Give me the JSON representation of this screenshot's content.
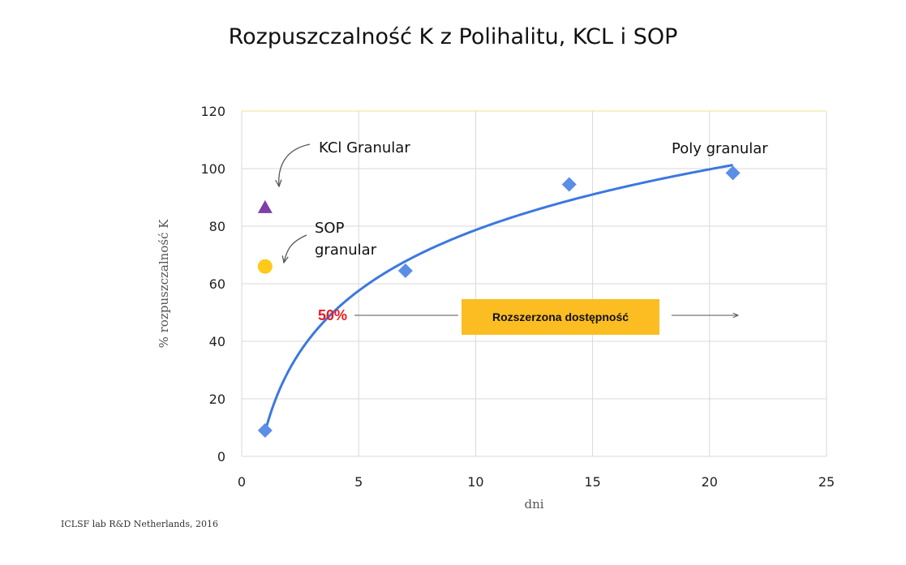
{
  "chart_data": {
    "type": "scatter",
    "title": "Rozpuszczalność K z Polihalitu, KCL i SOP",
    "xlabel": "dni",
    "ylabel": "% rozpuszczalność K",
    "xlim": [
      0,
      25
    ],
    "ylim": [
      0,
      120
    ],
    "x_ticks": [
      0,
      5,
      10,
      15,
      20,
      25
    ],
    "y_ticks": [
      0,
      20,
      40,
      60,
      80,
      100,
      120
    ],
    "grid": true,
    "series": [
      {
        "name": "Poly granular",
        "marker": "diamond",
        "color": "#5b8ee6",
        "x": [
          1,
          7,
          14,
          21
        ],
        "y": [
          9,
          64.5,
          94.5,
          98.5
        ]
      },
      {
        "name": "KCl Granular",
        "marker": "triangle",
        "color": "#7f3fa6",
        "x": [
          1
        ],
        "y": [
          86.5
        ]
      },
      {
        "name": "SOP granular",
        "marker": "circle",
        "color": "#ffc91a",
        "x": [
          1
        ],
        "y": [
          66
        ]
      }
    ],
    "trendline": {
      "type": "logarithmic",
      "color": "#3b78e0",
      "x_start": 1,
      "x_end": 21
    },
    "annotations": {
      "kcl_label": "KCl Granular",
      "sop_label_line1": "SOP",
      "sop_label_line2": "granular",
      "poly_label": "Poly granular",
      "fifty_percent": "50%",
      "extended_box": "Rozszerzona dostępność"
    },
    "colors": {
      "grid": "#d9d9d9",
      "top_line": "#f2e38a",
      "fifty_percent": "#e81b23",
      "box_fill": "#fbbd22",
      "arrow": "#555555"
    }
  },
  "source_note": "ICLSF lab R&D Netherlands, 2016"
}
